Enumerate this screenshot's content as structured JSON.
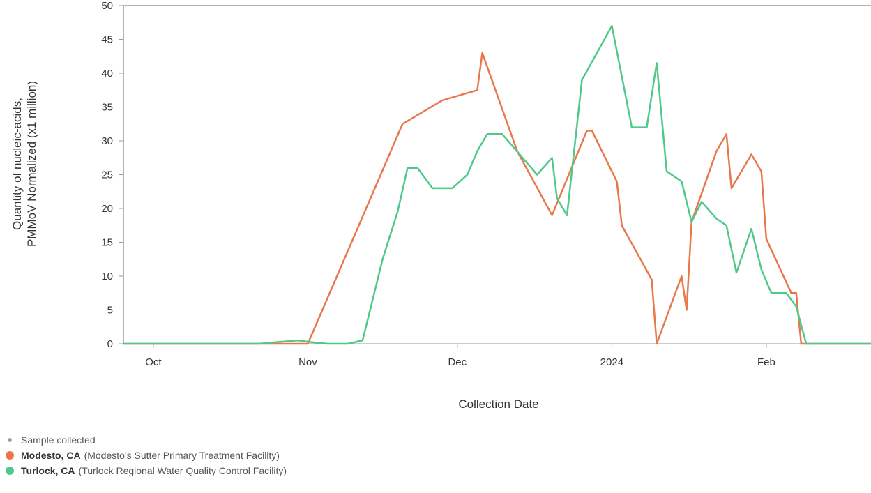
{
  "chart_data": {
    "type": "line",
    "xlabel": "Collection Date",
    "ylabel_line1": "Quantity of nucleic-acids,",
    "ylabel_line2": "PMMoV Normalized (x1 million)",
    "ylim": [
      0,
      50
    ],
    "yticks": [
      0,
      5,
      10,
      15,
      20,
      25,
      30,
      35,
      40,
      45,
      50
    ],
    "xlim": [
      "2023-09-25",
      "2024-02-22"
    ],
    "xticks": [
      {
        "date": "2023-10-01",
        "label": "Oct"
      },
      {
        "date": "2023-11-01",
        "label": "Nov"
      },
      {
        "date": "2023-12-01",
        "label": "Dec"
      },
      {
        "date": "2024-01-01",
        "label": "2024"
      },
      {
        "date": "2024-02-01",
        "label": "Feb"
      }
    ],
    "grid": false,
    "series": [
      {
        "name": "Modesto, CA",
        "color": "#e8774a",
        "points": [
          [
            "2023-09-25",
            0
          ],
          [
            "2023-11-01",
            0
          ],
          [
            "2023-11-20",
            32.5
          ],
          [
            "2023-11-28",
            36
          ],
          [
            "2023-12-05",
            37.5
          ],
          [
            "2023-12-06",
            43
          ],
          [
            "2023-12-13",
            28.5
          ],
          [
            "2023-12-20",
            19
          ],
          [
            "2023-12-27",
            31.5
          ],
          [
            "2023-12-28",
            31.5
          ],
          [
            "2024-01-02",
            24
          ],
          [
            "2024-01-03",
            17.5
          ],
          [
            "2024-01-09",
            9.5
          ],
          [
            "2024-01-10",
            0
          ],
          [
            "2024-01-15",
            10
          ],
          [
            "2024-01-16",
            5
          ],
          [
            "2024-01-17",
            18
          ],
          [
            "2024-01-22",
            28.5
          ],
          [
            "2024-01-24",
            31
          ],
          [
            "2024-01-25",
            23
          ],
          [
            "2024-01-29",
            28
          ],
          [
            "2024-01-31",
            25.5
          ],
          [
            "2024-02-01",
            15.5
          ],
          [
            "2024-02-06",
            7.5
          ],
          [
            "2024-02-07",
            7.5
          ],
          [
            "2024-02-08",
            0
          ],
          [
            "2024-02-22",
            0
          ]
        ]
      },
      {
        "name": "Turlock, CA",
        "color": "#4fc98a",
        "points": [
          [
            "2023-09-25",
            0
          ],
          [
            "2023-10-22",
            0
          ],
          [
            "2023-10-30",
            0.5
          ],
          [
            "2023-11-01",
            0.3
          ],
          [
            "2023-11-05",
            0
          ],
          [
            "2023-11-09",
            0
          ],
          [
            "2023-11-12",
            0.5
          ],
          [
            "2023-11-16",
            12.5
          ],
          [
            "2023-11-19",
            19.5
          ],
          [
            "2023-11-21",
            26
          ],
          [
            "2023-11-23",
            26
          ],
          [
            "2023-11-26",
            23
          ],
          [
            "2023-11-30",
            23
          ],
          [
            "2023-12-03",
            25
          ],
          [
            "2023-12-05",
            28.5
          ],
          [
            "2023-12-07",
            31
          ],
          [
            "2023-12-10",
            31
          ],
          [
            "2023-12-17",
            25
          ],
          [
            "2023-12-20",
            27.5
          ],
          [
            "2023-12-21",
            21.5
          ],
          [
            "2023-12-23",
            19
          ],
          [
            "2023-12-26",
            39
          ],
          [
            "2024-01-01",
            47
          ],
          [
            "2024-01-05",
            32
          ],
          [
            "2024-01-08",
            32
          ],
          [
            "2024-01-10",
            41.5
          ],
          [
            "2024-01-12",
            25.5
          ],
          [
            "2024-01-15",
            24
          ],
          [
            "2024-01-17",
            18
          ],
          [
            "2024-01-19",
            21
          ],
          [
            "2024-01-22",
            18.5
          ],
          [
            "2024-01-24",
            17.5
          ],
          [
            "2024-01-26",
            10.5
          ],
          [
            "2024-01-29",
            17
          ],
          [
            "2024-01-31",
            11
          ],
          [
            "2024-02-02",
            7.5
          ],
          [
            "2024-02-05",
            7.5
          ],
          [
            "2024-02-07",
            5.5
          ],
          [
            "2024-02-09",
            0
          ],
          [
            "2024-02-22",
            0
          ]
        ]
      }
    ]
  },
  "legend": {
    "sample_label": "Sample collected",
    "sample_color": "#9aa3ad",
    "items": [
      {
        "name": "Modesto, CA",
        "facility": "(Modesto's Sutter Primary Treatment Facility)",
        "color": "#e8774a"
      },
      {
        "name": "Turlock, CA",
        "facility": "(Turlock Regional Water Quality Control Facility)",
        "color": "#4fc98a"
      }
    ]
  }
}
